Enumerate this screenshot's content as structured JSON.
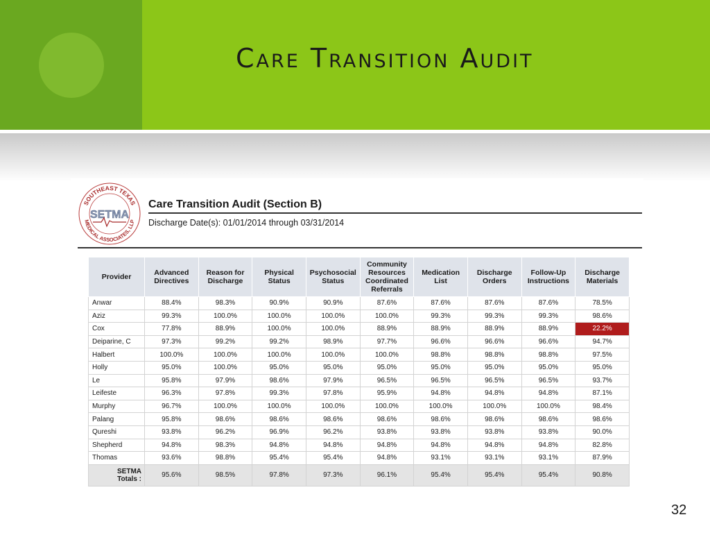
{
  "slide": {
    "title": "Care Transition Audit",
    "page_number": "32"
  },
  "logo": {
    "arc_top": "SOUTHEAST TEXAS",
    "arc_bottom": "MEDICAL ASSOCIATES, LLP",
    "wordmark": "SETMA"
  },
  "report": {
    "title": "Care Transition Audit (Section B)",
    "subtitle": "Discharge Date(s):  01/01/2014 through 03/31/2014"
  },
  "table": {
    "headers": {
      "provider": "Provider",
      "c1": "Advanced Directives",
      "c2": "Reason for Discharge",
      "c3": "Physical Status",
      "c4": "Psychosocial Status",
      "c5": "Community Resources Coordinated Referrals",
      "c6": "Medication List",
      "c7": "Discharge Orders",
      "c8": "Follow-Up Instructions",
      "c9": "Discharge Materials"
    },
    "rows": [
      {
        "name": "Anwar",
        "v": [
          "88.4%",
          "98.3%",
          "90.9%",
          "90.9%",
          "87.6%",
          "87.6%",
          "87.6%",
          "87.6%",
          "78.5%"
        ]
      },
      {
        "name": "Aziz",
        "v": [
          "99.3%",
          "100.0%",
          "100.0%",
          "100.0%",
          "100.0%",
          "99.3%",
          "99.3%",
          "99.3%",
          "98.6%"
        ]
      },
      {
        "name": "Cox",
        "v": [
          "77.8%",
          "88.9%",
          "100.0%",
          "100.0%",
          "88.9%",
          "88.9%",
          "88.9%",
          "88.9%",
          "22.2%"
        ]
      },
      {
        "name": "Deiparine, C",
        "v": [
          "97.3%",
          "99.2%",
          "99.2%",
          "98.9%",
          "97.7%",
          "96.6%",
          "96.6%",
          "96.6%",
          "94.7%"
        ]
      },
      {
        "name": "Halbert",
        "v": [
          "100.0%",
          "100.0%",
          "100.0%",
          "100.0%",
          "100.0%",
          "98.8%",
          "98.8%",
          "98.8%",
          "97.5%"
        ]
      },
      {
        "name": "Holly",
        "v": [
          "95.0%",
          "100.0%",
          "95.0%",
          "95.0%",
          "95.0%",
          "95.0%",
          "95.0%",
          "95.0%",
          "95.0%"
        ]
      },
      {
        "name": "Le",
        "v": [
          "95.8%",
          "97.9%",
          "98.6%",
          "97.9%",
          "96.5%",
          "96.5%",
          "96.5%",
          "96.5%",
          "93.7%"
        ]
      },
      {
        "name": "Leifeste",
        "v": [
          "96.3%",
          "97.8%",
          "99.3%",
          "97.8%",
          "95.9%",
          "94.8%",
          "94.8%",
          "94.8%",
          "87.1%"
        ]
      },
      {
        "name": "Murphy",
        "v": [
          "96.7%",
          "100.0%",
          "100.0%",
          "100.0%",
          "100.0%",
          "100.0%",
          "100.0%",
          "100.0%",
          "98.4%"
        ]
      },
      {
        "name": "Palang",
        "v": [
          "95.8%",
          "98.6%",
          "98.6%",
          "98.6%",
          "98.6%",
          "98.6%",
          "98.6%",
          "98.6%",
          "98.6%"
        ]
      },
      {
        "name": "Qureshi",
        "v": [
          "93.8%",
          "96.2%",
          "96.9%",
          "96.2%",
          "93.8%",
          "93.8%",
          "93.8%",
          "93.8%",
          "90.0%"
        ]
      },
      {
        "name": "Shepherd",
        "v": [
          "94.8%",
          "98.3%",
          "94.8%",
          "94.8%",
          "94.8%",
          "94.8%",
          "94.8%",
          "94.8%",
          "82.8%"
        ]
      },
      {
        "name": "Thomas",
        "v": [
          "93.6%",
          "98.8%",
          "95.4%",
          "95.4%",
          "94.8%",
          "93.1%",
          "93.1%",
          "93.1%",
          "87.9%"
        ]
      }
    ],
    "totals": {
      "label_line1": "SETMA",
      "label_line2": "Totals :",
      "v": [
        "95.6%",
        "98.5%",
        "97.8%",
        "97.3%",
        "96.1%",
        "95.4%",
        "95.4%",
        "95.4%",
        "90.8%"
      ]
    },
    "highlight": {
      "row": "Cox",
      "column": "Discharge Materials",
      "color": "#b01c1c"
    }
  },
  "colors": {
    "header_green": "#8cc618",
    "header_dark_green": "#6aa820",
    "table_header_bg": "#dfe3ea"
  }
}
